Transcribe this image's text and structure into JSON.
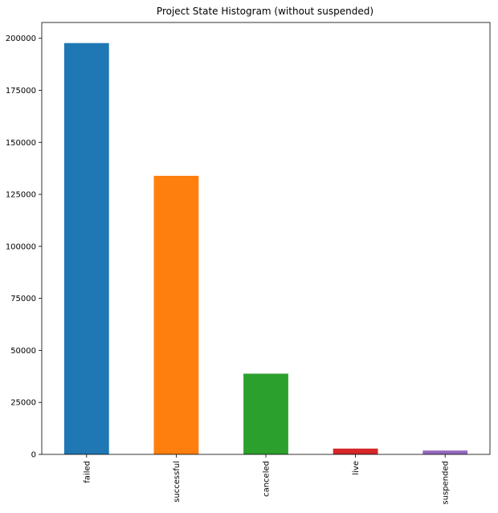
{
  "chart_data": {
    "type": "bar",
    "title": "Project State Histogram (without suspended)",
    "xlabel": "",
    "ylabel": "",
    "categories": [
      "failed",
      "successful",
      "canceled",
      "live",
      "suspended"
    ],
    "values": [
      197700,
      133900,
      38800,
      2800,
      1850
    ],
    "colors": [
      "#1f77b4",
      "#ff7f0e",
      "#2ca02c",
      "#d62728",
      "#9467bd"
    ],
    "ylim": [
      0,
      207600
    ],
    "yticks": [
      0,
      25000,
      50000,
      75000,
      100000,
      125000,
      150000,
      175000,
      200000
    ],
    "grid": false,
    "legend": "none"
  }
}
